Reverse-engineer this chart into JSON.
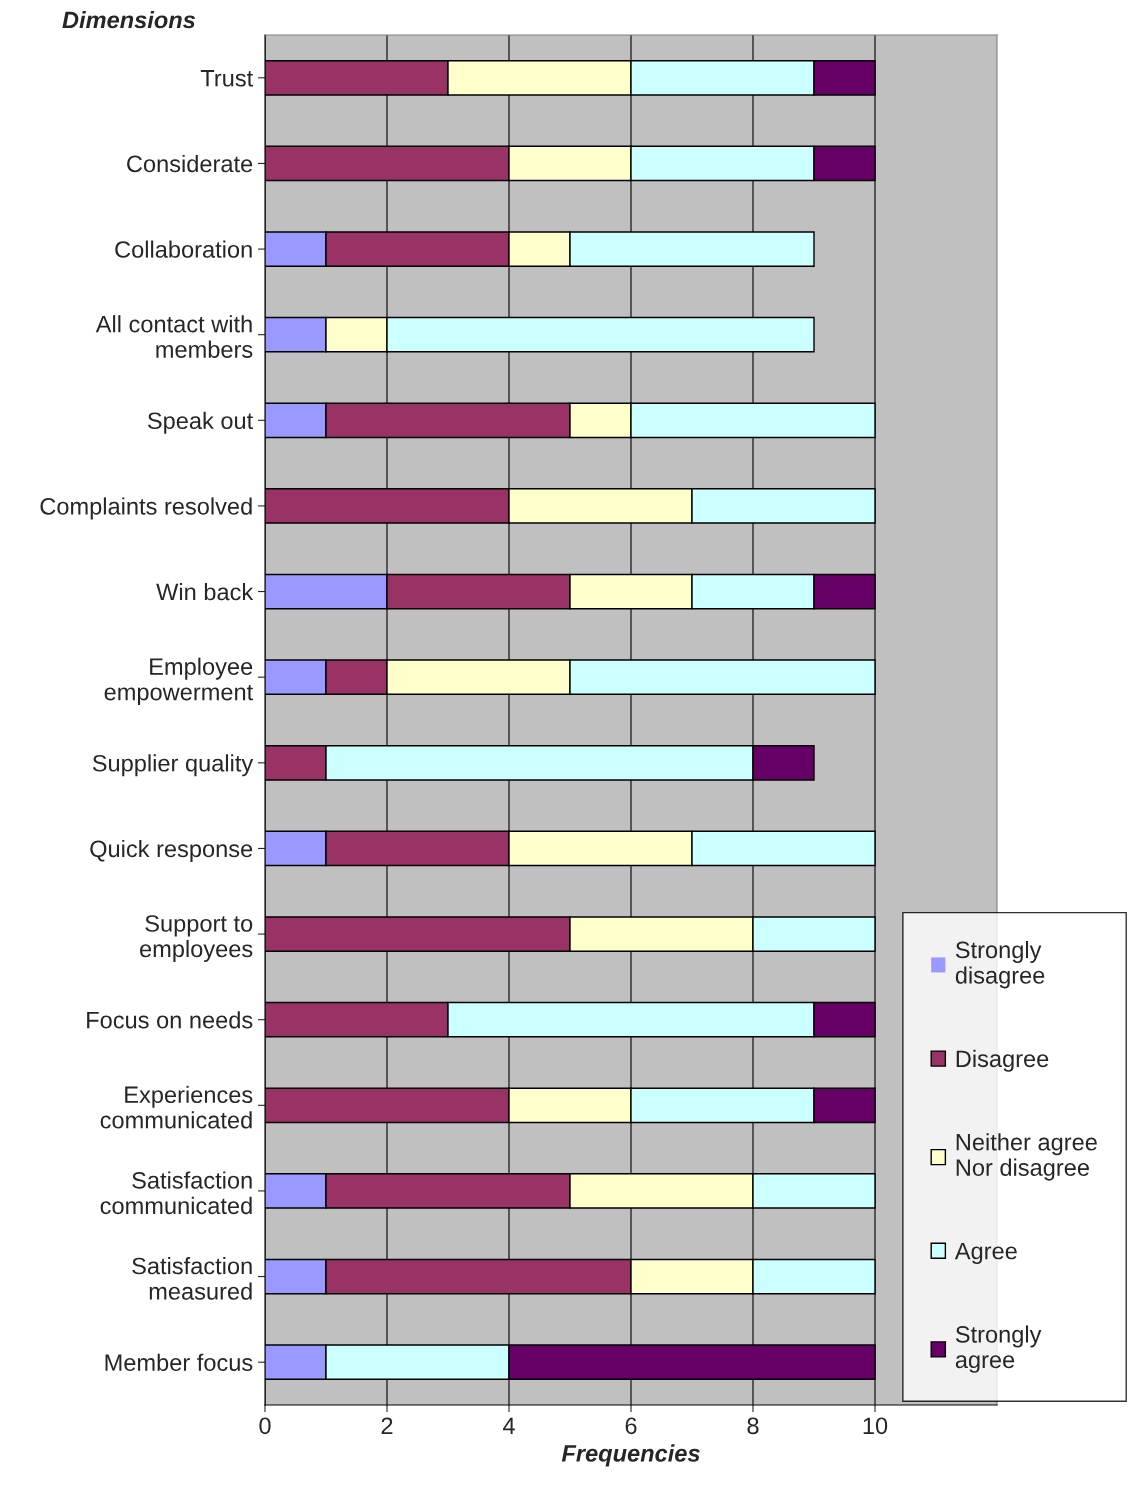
{
  "chart_data": {
    "type": "bar",
    "orientation": "horizontal",
    "stacked": true,
    "title": "Dimensions",
    "xlabel": "Frequencies",
    "categories": [
      "Trust",
      "Considerate",
      "Collaboration",
      "All contact with\nmembers",
      "Speak out",
      "Complaints resolved",
      "Win back",
      "Employee\nempowerment",
      "Supplier quality",
      "Quick response",
      "Support to\nemployees",
      "Focus on needs",
      "Experiences\ncommunicated",
      "Satisfaction\ncommunicated",
      "Satisfaction\nmeasured",
      "Member focus"
    ],
    "series": [
      {
        "name": "Strongly\ndisagree",
        "color": "#9999ff",
        "values": [
          0,
          0,
          1,
          1,
          1,
          0,
          2,
          1,
          0,
          1,
          0,
          0,
          0,
          1,
          1,
          1
        ]
      },
      {
        "name": "Disagree",
        "color": "#993366",
        "values": [
          3,
          4,
          3,
          0,
          4,
          4,
          3,
          1,
          1,
          3,
          5,
          3,
          4,
          4,
          5,
          0
        ]
      },
      {
        "name": "Neither agree\nNor disagree",
        "color": "#ffffcc",
        "values": [
          3,
          2,
          1,
          1,
          1,
          3,
          2,
          3,
          0,
          3,
          3,
          0,
          2,
          3,
          2,
          0
        ]
      },
      {
        "name": "Agree",
        "color": "#ccffff",
        "values": [
          3,
          3,
          4,
          7,
          4,
          3,
          2,
          5,
          7,
          3,
          2,
          6,
          3,
          2,
          2,
          3
        ]
      },
      {
        "name": "Strongly\nagree",
        "color": "#660066",
        "values": [
          1,
          1,
          0,
          0,
          0,
          0,
          1,
          0,
          1,
          0,
          0,
          1,
          1,
          0,
          0,
          6
        ]
      }
    ],
    "xlim": [
      0,
      12
    ],
    "xticks": [
      0,
      2,
      4,
      6,
      8,
      10
    ],
    "grid": "x",
    "legend": "right"
  }
}
